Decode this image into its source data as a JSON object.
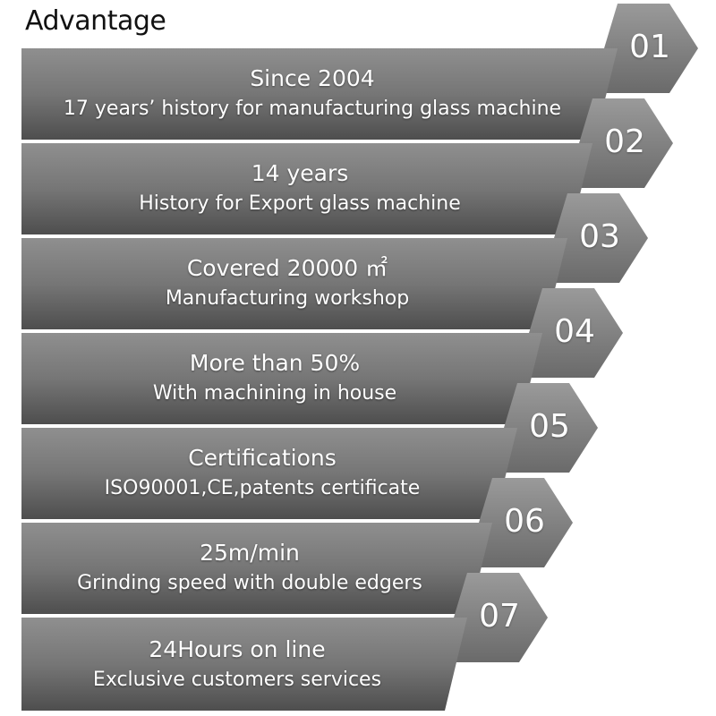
{
  "title": "Advantage",
  "items": [
    {
      "number": "01",
      "line1": "Since  2004",
      "line2": "17 years’   history for manufacturing glass machine"
    },
    {
      "number": "02",
      "line1": "14 years",
      "line2": "History for Export glass machine"
    },
    {
      "number": "03",
      "line1": "Covered 20000 ㎡",
      "line2": "Manufacturing workshop"
    },
    {
      "number": "04",
      "line1": "More than 50%",
      "line2": "With machining in house"
    },
    {
      "number": "05",
      "line1": "Certifications",
      "line2": "ISO90001,CE,patents certificate"
    },
    {
      "number": "06",
      "line1": "25m/min",
      "line2": "Grinding speed with double edgers"
    },
    {
      "number": "07",
      "line1": "24Hours on line",
      "line2": "Exclusive customers services"
    }
  ]
}
